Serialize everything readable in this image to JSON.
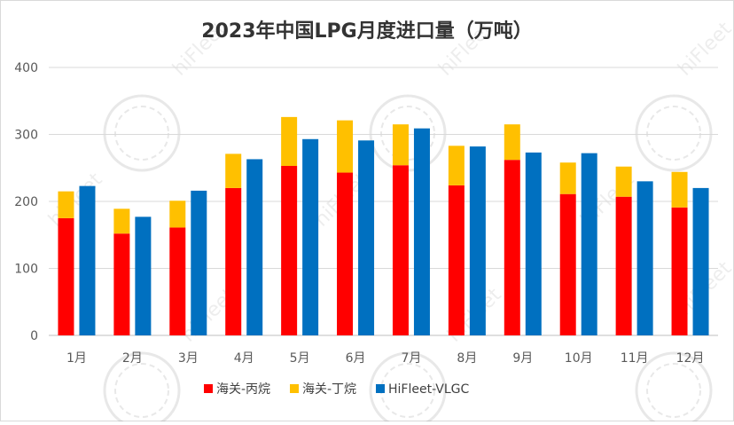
{
  "chart_data": {
    "type": "bar",
    "title": "2023年中国LPG月度进口量（万吨）",
    "categories": [
      "1月",
      "2月",
      "3月",
      "4月",
      "5月",
      "6月",
      "7月",
      "8月",
      "9月",
      "10月",
      "11月",
      "12月"
    ],
    "series": [
      {
        "name": "海关-丙烷",
        "values": [
          175,
          152,
          161,
          220,
          253,
          243,
          254,
          224,
          262,
          211,
          207,
          191
        ],
        "color": "#ff0000",
        "stack": "customs"
      },
      {
        "name": "海关-丁烷",
        "values": [
          40,
          37,
          40,
          51,
          73,
          78,
          61,
          59,
          53,
          47,
          45,
          53
        ],
        "color": "#ffc000",
        "stack": "customs"
      },
      {
        "name": "HiFleet-VLGC",
        "values": [
          223,
          177,
          216,
          263,
          293,
          291,
          309,
          282,
          273,
          272,
          230,
          220
        ],
        "color": "#0070c0",
        "stack": "hifleet"
      }
    ],
    "ylim": [
      0,
      400
    ],
    "yticks": [
      0,
      100,
      200,
      300,
      400
    ],
    "grid": true,
    "legend": "bottom",
    "watermark": "hiFleet"
  }
}
